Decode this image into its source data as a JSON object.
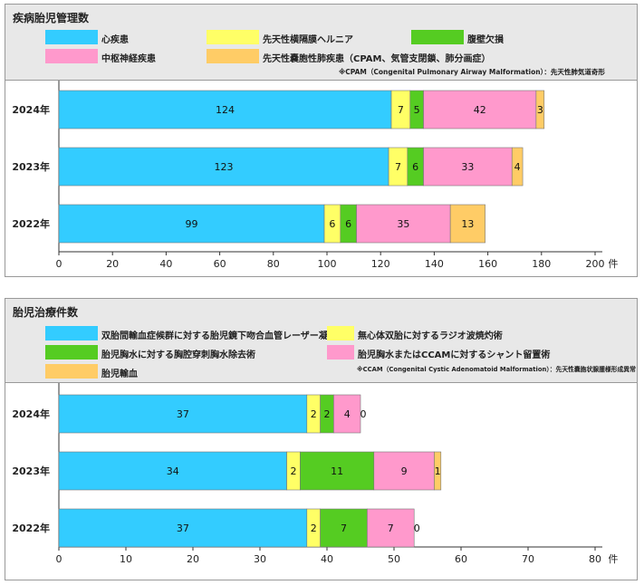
{
  "chart_data": [
    {
      "type": "bar",
      "orientation": "horizontal",
      "stacked": true,
      "title": "疾病胎児管理数",
      "unit": "件",
      "categories": [
        "2024年",
        "2023年",
        "2022年"
      ],
      "xlim": [
        0,
        200
      ],
      "xticks": [
        0,
        20,
        40,
        60,
        80,
        100,
        120,
        140,
        160,
        180,
        200
      ],
      "series": [
        {
          "name": "心疾患",
          "color": "#33ccff",
          "values": [
            124,
            123,
            99
          ]
        },
        {
          "name": "先天性横隔膜ヘルニア",
          "color": "#ffff66",
          "values": [
            7,
            7,
            6
          ]
        },
        {
          "name": "腹壁欠損",
          "color": "#55cc22",
          "values": [
            5,
            6,
            6
          ]
        },
        {
          "name": "中枢神経疾患",
          "color": "#ff99cc",
          "values": [
            42,
            33,
            35
          ]
        },
        {
          "name": "先天性嚢胞性肺疾患（CPAM、気管支閉鎖、肺分画症）",
          "color": "#ffcc66",
          "values": [
            3,
            4,
            13
          ]
        }
      ],
      "note": "※CPAM（Congenital Pulmonary Airway Malformation）：先天性肺気道奇形"
    },
    {
      "type": "bar",
      "orientation": "horizontal",
      "stacked": true,
      "title": "胎児治療件数",
      "unit": "件",
      "categories": [
        "2024年",
        "2023年",
        "2022年"
      ],
      "xlim": [
        0,
        80
      ],
      "xticks": [
        0,
        10,
        20,
        30,
        40,
        50,
        60,
        70,
        80
      ],
      "series": [
        {
          "name": "双胎間輸血症候群に対する胎児鏡下吻合血管レーザー凝固術",
          "color": "#33ccff",
          "values": [
            37,
            34,
            37
          ]
        },
        {
          "name": "無心体双胎に対するラジオ波焼灼術",
          "color": "#ffff66",
          "values": [
            2,
            2,
            2
          ]
        },
        {
          "name": "胎児胸水に対する胸腔穿刺胸水除去術",
          "color": "#55cc22",
          "values": [
            2,
            11,
            7
          ]
        },
        {
          "name": "胎児胸水またはCCAMに対するシャント留置術",
          "color": "#ff99cc",
          "values": [
            4,
            9,
            7
          ]
        },
        {
          "name": "胎児輸血",
          "color": "#ffcc66",
          "values": [
            0,
            1,
            0
          ]
        }
      ],
      "note": "※CCAM（Congenital Cystic Adenomatoid Malformation）：先天性嚢胞状腺腫様形成異常"
    }
  ]
}
